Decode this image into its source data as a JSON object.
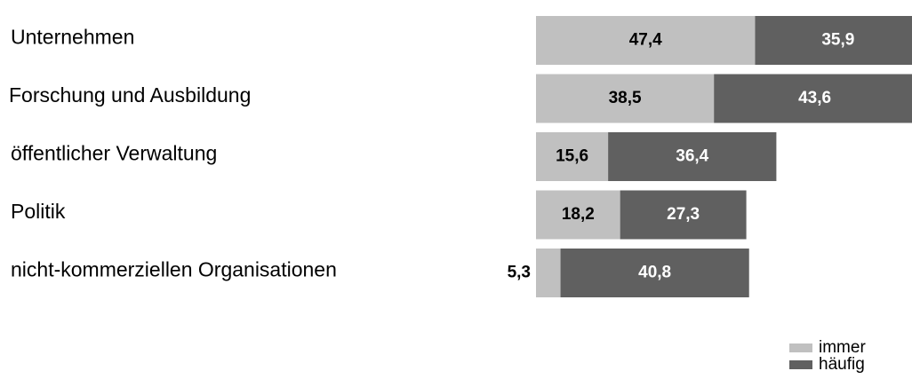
{
  "chart_data": {
    "type": "stacked-bar-horizontal",
    "categories": [
      "Unternehmen",
      "Forschung und Ausbildung",
      "öffentlicher Verwaltung",
      "Politik",
      "nicht-kommerziellen Organisationen"
    ],
    "series": [
      {
        "name": "immer",
        "color": "#c0c0c0",
        "values": [
          47.4,
          38.5,
          15.6,
          18.2,
          5.3
        ],
        "value_labels": [
          "47,4",
          "38,5",
          "15,6",
          "18,2",
          "5,3"
        ]
      },
      {
        "name": "häufig",
        "color": "#606060",
        "values": [
          35.9,
          43.6,
          36.4,
          27.3,
          40.8
        ],
        "value_labels": [
          "35,9",
          "43,6",
          "36,4",
          "27,3",
          "40,8"
        ]
      }
    ]
  }
}
